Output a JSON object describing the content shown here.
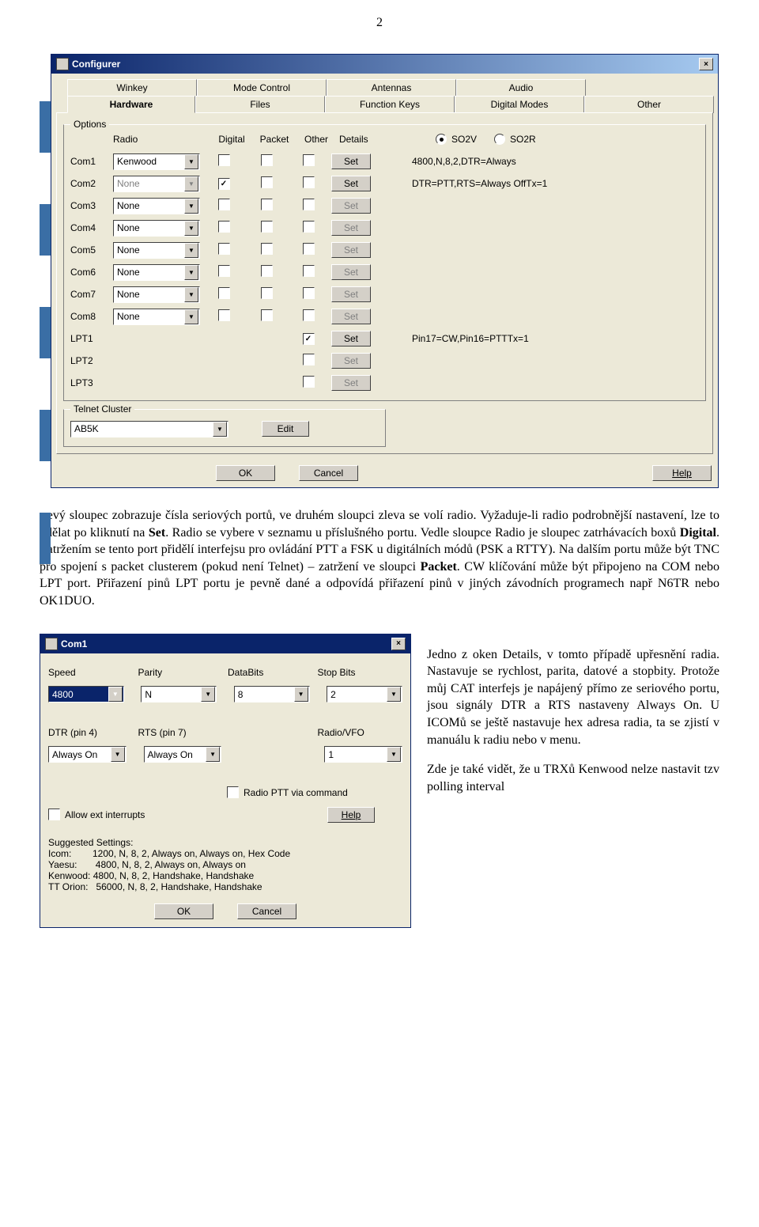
{
  "page_number": "2",
  "configurer": {
    "title": "Configurer",
    "tabs_row1": [
      "Winkey",
      "Mode Control",
      "Antennas",
      "Audio"
    ],
    "tabs_row2": {
      "active": "Hardware",
      "items": [
        "Hardware",
        "Files",
        "Function Keys",
        "Digital Modes",
        "Other"
      ]
    },
    "options_group_label": "Options",
    "headers": {
      "radio": "Radio",
      "digital": "Digital",
      "packet": "Packet",
      "other": "Other",
      "details": "Details"
    },
    "so_radio": {
      "so2v": "SO2V",
      "so2r": "SO2R",
      "selected": "so2v"
    },
    "rows": [
      {
        "com": "Com1",
        "radio": "Kenwood",
        "radio_enabled": true,
        "digital": false,
        "packet": false,
        "other": false,
        "set_enabled": true,
        "detail": "4800,N,8,2,DTR=Always"
      },
      {
        "com": "Com2",
        "radio": "None",
        "radio_enabled": false,
        "digital": true,
        "packet": false,
        "other": false,
        "set_enabled": true,
        "detail": "DTR=PTT,RTS=Always OffTx=1"
      },
      {
        "com": "Com3",
        "radio": "None",
        "radio_enabled": true,
        "digital": false,
        "packet": false,
        "other": false,
        "set_enabled": false,
        "detail": ""
      },
      {
        "com": "Com4",
        "radio": "None",
        "radio_enabled": true,
        "digital": false,
        "packet": false,
        "other": false,
        "set_enabled": false,
        "detail": ""
      },
      {
        "com": "Com5",
        "radio": "None",
        "radio_enabled": true,
        "digital": false,
        "packet": false,
        "other": false,
        "set_enabled": false,
        "detail": ""
      },
      {
        "com": "Com6",
        "radio": "None",
        "radio_enabled": true,
        "digital": false,
        "packet": false,
        "other": false,
        "set_enabled": false,
        "detail": ""
      },
      {
        "com": "Com7",
        "radio": "None",
        "radio_enabled": true,
        "digital": false,
        "packet": false,
        "other": false,
        "set_enabled": false,
        "detail": ""
      },
      {
        "com": "Com8",
        "radio": "None",
        "radio_enabled": true,
        "digital": false,
        "packet": false,
        "other": false,
        "set_enabled": false,
        "detail": ""
      }
    ],
    "lpt_rows": [
      {
        "name": "LPT1",
        "other": true,
        "set_enabled": true,
        "detail": "Pin17=CW,Pin16=PTTTx=1"
      },
      {
        "name": "LPT2",
        "other": false,
        "set_enabled": false,
        "detail": ""
      },
      {
        "name": "LPT3",
        "other": false,
        "set_enabled": false,
        "detail": ""
      }
    ],
    "telnet": {
      "label": "Telnet Cluster",
      "value": "AB5K",
      "edit": "Edit"
    },
    "set_label": "Set",
    "buttons": {
      "ok": "OK",
      "cancel": "Cancel",
      "help": "Help"
    },
    "left_stripe_colors": [
      "#3a6ea5",
      "#ffffff",
      "#3a6ea5",
      "#ffffff",
      "#3a6ea5",
      "#ffffff",
      "#3a6ea5",
      "#ffffff",
      "#3a6ea5"
    ]
  },
  "para1": {
    "t1": "Levý sloupec zobrazuje čísla seriových portů, ve druhém sloupci zleva se volí radio. Vyžaduje-li radio podrobnější nastavení, lze to udělat po kliknutí na ",
    "b1": "Set",
    "t2": ". Radio se vybere v seznamu u příslušného portu. Vedle sloupce Radio je sloupec zatrhávacích boxů ",
    "b2": "Digital",
    "t3": ". Zatržením se tento port přidělí interfejsu pro ovládání PTT a FSK u digitálních módů (PSK a RTTY). Na dalším portu může být TNC pro spojení s packet clusterem (pokud není Telnet) – zatržení ve sloupci ",
    "b3": "Packet",
    "t4": ". CW klíčování může být připojeno na COM nebo LPT port. Přiřazení pinů LPT portu je pevně dané a odpovídá přiřazení pinů v jiných závodních programech např N6TR nebo OK1DUO."
  },
  "com1": {
    "title": "Com1",
    "labels": {
      "speed": "Speed",
      "parity": "Parity",
      "databits": "DataBits",
      "stopbits": "Stop Bits",
      "dtr": "DTR (pin 4)",
      "rts": "RTS (pin 7)",
      "radiovfo": "Radio/VFO",
      "pttcmd": "Radio PTT via command",
      "allow": "Allow ext interrupts",
      "help": "Help"
    },
    "values": {
      "speed": "4800",
      "parity": "N",
      "databits": "8",
      "stopbits": "2",
      "dtr": "Always On",
      "rts": "Always On",
      "radiovfo": "1"
    },
    "suggested": {
      "title": "Suggested Settings:",
      "l1": "Icom:        1200, N, 8, 2, Always on, Always on, Hex Code",
      "l2": "Yaesu:       4800, N, 8, 2, Always on, Always on",
      "l3": "Kenwood: 4800, N, 8, 2, Handshake, Handshake",
      "l4": "TT Orion:   56000, N, 8, 2, Handshake, Handshake"
    },
    "buttons": {
      "ok": "OK",
      "cancel": "Cancel"
    }
  },
  "rightpara": {
    "t1": "Jedno z oken ",
    "b1": "Details",
    "t2": ", v tomto případě upřesnění radia. Nastavuje se rychlost, parita, datové a stopbity.  Protože můj CAT interfejs je napájený přímo ze seriového portu, jsou signály DTR a RTS nastaveny Always On. U ICOMů se ještě nastavuje hex adresa radia, ta se zjistí v manuálu k radiu nebo v menu.",
    "t3": "Zde je také vidět, že u TRXů Kenwood nelze nastavit tzv polling interval"
  }
}
